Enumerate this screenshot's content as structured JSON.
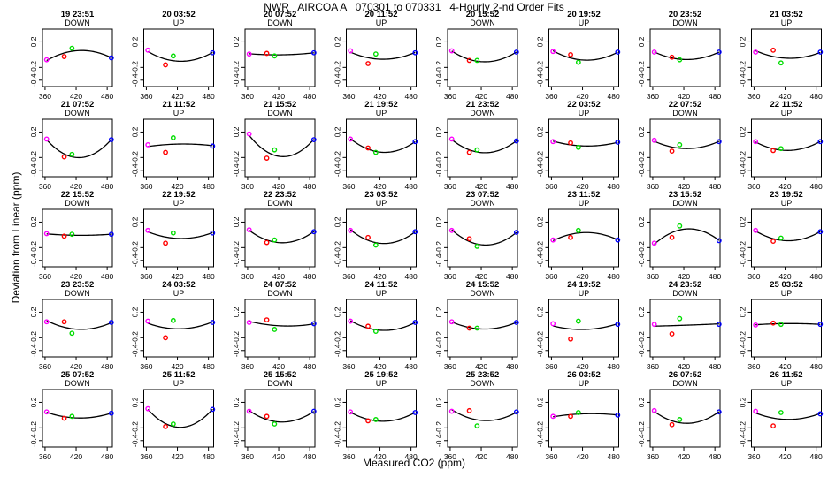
{
  "title": "NWR   AIRCOA A   070301 to 070331   4-Hourly 2-nd Order Fits",
  "xlabel": "Measured CO2 (ppm)",
  "ylabel": "Deviation from Linear (ppm)",
  "colors": {
    "fit_line": "#000000",
    "point_low": "#ff00ff",
    "point_mid1": "#ff0000",
    "point_mid2": "#00dd00",
    "point_high": "#0000ff"
  },
  "chart_data": {
    "type": "scatter",
    "layout": "grid of 5 rows x 8 columns",
    "xlim": [
      355,
      490
    ],
    "ylim": [
      -0.5,
      0.4
    ],
    "x_ticks": [
      "360",
      "420",
      "480"
    ],
    "y_ticks": [
      "0.2",
      "-0.2",
      "-0.4"
    ],
    "y_tick_values": [
      0.2,
      -0.2,
      -0.4
    ],
    "x_tick_values": [
      360,
      420,
      480
    ],
    "x_standards": [
      363,
      397,
      412,
      488
    ],
    "panels": [
      {
        "title": "19 23:51",
        "dir": "DOWN",
        "points": [
          -0.08,
          -0.03,
          0.1,
          -0.05
        ]
      },
      {
        "title": "20 03:52",
        "dir": "UP",
        "points": [
          0.07,
          -0.16,
          -0.02,
          0.03
        ]
      },
      {
        "title": "20 07:52",
        "dir": "DOWN",
        "points": [
          0.01,
          0.02,
          -0.02,
          0.03
        ]
      },
      {
        "title": "20 11:52",
        "dir": "UP",
        "points": [
          0.06,
          -0.14,
          0.01,
          0.03
        ]
      },
      {
        "title": "20 15:52",
        "dir": "DOWN",
        "points": [
          0.06,
          -0.09,
          -0.09,
          0.04
        ]
      },
      {
        "title": "20 19:52",
        "dir": "UP",
        "points": [
          0.05,
          0.0,
          -0.12,
          0.04
        ]
      },
      {
        "title": "20 23:52",
        "dir": "DOWN",
        "points": [
          0.04,
          -0.04,
          -0.08,
          0.04
        ]
      },
      {
        "title": "21 03:52",
        "dir": "UP",
        "points": [
          0.04,
          0.07,
          -0.13,
          0.04
        ]
      },
      {
        "title": "21 07:52",
        "dir": "DOWN",
        "points": [
          0.09,
          -0.19,
          -0.15,
          0.08
        ]
      },
      {
        "title": "21 11:52",
        "dir": "UP",
        "points": [
          0.0,
          -0.12,
          0.11,
          -0.02
        ]
      },
      {
        "title": "21 15:52",
        "dir": "DOWN",
        "points": [
          0.17,
          -0.21,
          -0.08,
          0.08
        ]
      },
      {
        "title": "21 19:52",
        "dir": "UP",
        "points": [
          0.09,
          -0.05,
          -0.12,
          0.05
        ]
      },
      {
        "title": "21 23:52",
        "dir": "DOWN",
        "points": [
          0.09,
          -0.12,
          -0.08,
          0.06
        ]
      },
      {
        "title": "22 03:52",
        "dir": "UP",
        "points": [
          0.05,
          0.03,
          -0.04,
          0.04
        ]
      },
      {
        "title": "22 07:52",
        "dir": "DOWN",
        "points": [
          0.07,
          -0.1,
          0.0,
          0.05
        ]
      },
      {
        "title": "22 11:52",
        "dir": "UP",
        "points": [
          0.05,
          -0.09,
          -0.06,
          0.05
        ]
      },
      {
        "title": "22 15:52",
        "dir": "DOWN",
        "points": [
          0.02,
          -0.02,
          0.01,
          0.01
        ]
      },
      {
        "title": "22 19:52",
        "dir": "UP",
        "points": [
          0.07,
          -0.13,
          0.03,
          0.03
        ]
      },
      {
        "title": "22 23:52",
        "dir": "DOWN",
        "points": [
          0.08,
          -0.12,
          -0.08,
          0.05
        ]
      },
      {
        "title": "23 03:52",
        "dir": "UP",
        "points": [
          0.07,
          -0.04,
          -0.16,
          0.05
        ]
      },
      {
        "title": "23 07:52",
        "dir": "DOWN",
        "points": [
          0.07,
          -0.06,
          -0.18,
          0.04
        ]
      },
      {
        "title": "23 11:52",
        "dir": "UP",
        "points": [
          -0.08,
          -0.04,
          0.07,
          -0.08
        ]
      },
      {
        "title": "23 15:52",
        "dir": "DOWN",
        "points": [
          -0.13,
          -0.04,
          0.14,
          -0.09
        ]
      },
      {
        "title": "23 19:52",
        "dir": "UP",
        "points": [
          0.07,
          -0.1,
          -0.05,
          0.05
        ]
      },
      {
        "title": "23 23:52",
        "dir": "DOWN",
        "points": [
          0.05,
          0.05,
          -0.13,
          0.04
        ]
      },
      {
        "title": "24 03:52",
        "dir": "UP",
        "points": [
          0.06,
          -0.2,
          0.07,
          0.04
        ]
      },
      {
        "title": "24 07:52",
        "dir": "DOWN",
        "points": [
          0.04,
          0.08,
          -0.07,
          0.02
        ]
      },
      {
        "title": "24 11:52",
        "dir": "UP",
        "points": [
          0.06,
          -0.02,
          -0.1,
          0.04
        ]
      },
      {
        "title": "24 15:52",
        "dir": "DOWN",
        "points": [
          0.05,
          -0.05,
          -0.05,
          0.04
        ]
      },
      {
        "title": "24 19:52",
        "dir": "UP",
        "points": [
          0.02,
          -0.22,
          0.06,
          0.01
        ]
      },
      {
        "title": "24 23:52",
        "dir": "DOWN",
        "points": [
          0.01,
          -0.14,
          0.1,
          0.01
        ]
      },
      {
        "title": "25 03:52",
        "dir": "UP",
        "points": [
          0.0,
          0.03,
          0.01,
          0.01
        ]
      },
      {
        "title": "25 07:52",
        "dir": "DOWN",
        "points": [
          0.05,
          -0.05,
          -0.02,
          0.03
        ]
      },
      {
        "title": "25 11:52",
        "dir": "UP",
        "points": [
          0.1,
          -0.18,
          -0.14,
          0.09
        ]
      },
      {
        "title": "25 15:52",
        "dir": "DOWN",
        "points": [
          0.06,
          -0.02,
          -0.14,
          0.06
        ]
      },
      {
        "title": "25 19:52",
        "dir": "UP",
        "points": [
          0.05,
          -0.09,
          -0.07,
          0.04
        ]
      },
      {
        "title": "25 23:52",
        "dir": "DOWN",
        "points": [
          0.06,
          0.07,
          -0.17,
          0.05
        ]
      },
      {
        "title": "26 03:52",
        "dir": "UP",
        "points": [
          -0.02,
          -0.02,
          0.04,
          0.0
        ]
      },
      {
        "title": "26 07:52",
        "dir": "DOWN",
        "points": [
          0.07,
          -0.15,
          -0.07,
          0.05
        ]
      },
      {
        "title": "26 11:52",
        "dir": "UP",
        "points": [
          0.06,
          -0.17,
          0.04,
          0.02
        ]
      }
    ]
  }
}
